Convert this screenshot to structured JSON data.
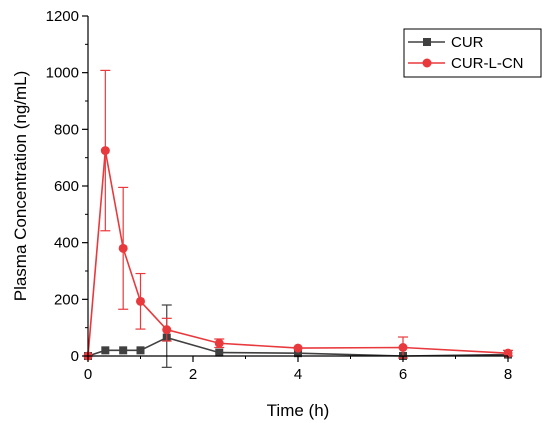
{
  "chart_data": {
    "type": "line",
    "title": "",
    "xlabel": "Time (h)",
    "ylabel": "Plasma Concentration (ng/mL)",
    "xlim": [
      0,
      8
    ],
    "ylim": [
      0,
      1200
    ],
    "xticks": [
      0,
      2,
      4,
      6,
      8
    ],
    "yticks": [
      0,
      200,
      400,
      600,
      800,
      1000,
      1200
    ],
    "grid": false,
    "legend_position": "top-right",
    "series": [
      {
        "name": "CUR",
        "color": "#404040",
        "marker": "square",
        "x": [
          0,
          0.33,
          0.67,
          1,
          1.5,
          2.5,
          4,
          6,
          8
        ],
        "y": [
          0,
          20,
          20,
          20,
          65,
          12,
          10,
          0,
          5
        ],
        "error": [
          0,
          0,
          0,
          0,
          115,
          0,
          0,
          0,
          0
        ]
      },
      {
        "name": "CUR-L-CN",
        "color": "#e8393d",
        "marker": "circle",
        "x": [
          0,
          0.33,
          0.67,
          1,
          1.5,
          2.5,
          4,
          6,
          8
        ],
        "y": [
          0,
          725,
          380,
          193,
          93,
          45,
          28,
          30,
          10
        ],
        "error": [
          0,
          283,
          215,
          98,
          40,
          15,
          0,
          37,
          10
        ]
      }
    ]
  }
}
